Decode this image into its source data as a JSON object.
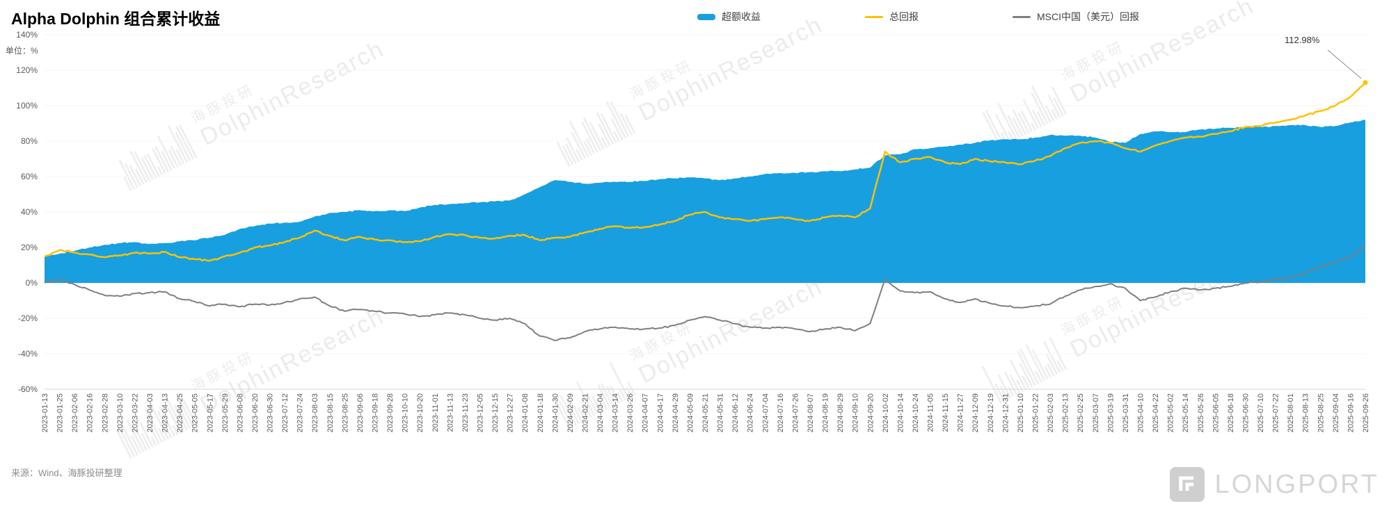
{
  "header": {
    "title": "Alpha Dolphin 组合累计收益",
    "unit_label": "单位：%"
  },
  "legend": [
    {
      "label": "超额收益",
      "color": "#189FE0",
      "type": "area"
    },
    {
      "label": "总回报",
      "color": "#FFC000",
      "type": "line"
    },
    {
      "label": "MSCI中国（美元）回报",
      "color": "#7F7F7F",
      "type": "line"
    }
  ],
  "annotation": {
    "label": "112.98%"
  },
  "footer": {
    "source": "来源：Wind、海豚投研整理"
  },
  "watermark": {
    "cn": "海豚投研",
    "en": "DolphinResearch"
  },
  "logo": {
    "text": "LONGPORT"
  },
  "chart_data": {
    "type": "area",
    "title": "Alpha Dolphin 组合累计收益",
    "xlabel": "",
    "ylabel": "单位：%",
    "ylim": [
      -60,
      140
    ],
    "y_tick_step": 20,
    "y_tick_labels": [
      "140%",
      "120%",
      "100%",
      "80%",
      "60%",
      "40%",
      "20%",
      "0%",
      "-20%",
      "-40%",
      "-60%"
    ],
    "grid": false,
    "legend_position": "top",
    "x": [
      "2023-01-13",
      "2023-01-25",
      "2023-02-06",
      "2023-02-16",
      "2023-02-28",
      "2023-03-10",
      "2023-03-22",
      "2023-04-03",
      "2023-04-13",
      "2023-04-25",
      "2023-05-05",
      "2023-05-17",
      "2023-05-29",
      "2023-06-08",
      "2023-06-20",
      "2023-06-30",
      "2023-07-12",
      "2023-07-24",
      "2023-08-03",
      "2023-08-15",
      "2023-08-25",
      "2023-09-06",
      "2023-09-18",
      "2023-09-28",
      "2023-10-10",
      "2023-10-20",
      "2023-11-01",
      "2023-11-13",
      "2023-11-23",
      "2023-12-05",
      "2023-12-15",
      "2023-12-27",
      "2024-01-08",
      "2024-01-18",
      "2024-01-30",
      "2024-02-09",
      "2024-02-21",
      "2024-03-04",
      "2024-03-14",
      "2024-03-26",
      "2024-04-07",
      "2024-04-17",
      "2024-04-29",
      "2024-05-09",
      "2024-05-21",
      "2024-05-31",
      "2024-06-12",
      "2024-06-24",
      "2024-07-04",
      "2024-07-16",
      "2024-07-26",
      "2024-08-07",
      "2024-08-19",
      "2024-08-29",
      "2024-09-10",
      "2024-09-20",
      "2024-10-02",
      "2024-10-14",
      "2024-10-24",
      "2024-11-05",
      "2024-11-15",
      "2024-11-27",
      "2024-12-09",
      "2024-12-19",
      "2024-12-31",
      "2025-01-10",
      "2025-01-22",
      "2025-02-03",
      "2025-02-13",
      "2025-02-25",
      "2025-03-07",
      "2025-03-19",
      "2025-03-31",
      "2025-04-10",
      "2025-04-22",
      "2025-05-02",
      "2025-05-14",
      "2025-05-26",
      "2025-06-05",
      "2025-06-18",
      "2025-06-30",
      "2025-07-10",
      "2025-07-22",
      "2025-08-01",
      "2025-08-13",
      "2025-08-25",
      "2025-09-04",
      "2025-09-16",
      "2025-09-26"
    ],
    "series": [
      {
        "name": "超额收益",
        "type": "area",
        "color": "#189FE0",
        "values": [
          15,
          16.5,
          18,
          20,
          21.5,
          22.5,
          23,
          22,
          22.5,
          23.5,
          24,
          25.5,
          27,
          30.5,
          32,
          33.5,
          34,
          34.5,
          37.5,
          39.5,
          40,
          41,
          40.5,
          41,
          40.5,
          42.5,
          44,
          44.5,
          45,
          45.5,
          46,
          46.5,
          50,
          54,
          58,
          57,
          56,
          56.5,
          57,
          57,
          57.5,
          58.5,
          59,
          59.5,
          59,
          58,
          59,
          60,
          61.5,
          62,
          62,
          62.5,
          63,
          63,
          64,
          65,
          72,
          72.5,
          75.5,
          76,
          77,
          78,
          79,
          80.5,
          81,
          81,
          82,
          83.5,
          83,
          83,
          82,
          79.5,
          79,
          84,
          85.5,
          85,
          85,
          86.5,
          87,
          87.5,
          88,
          88,
          88.5,
          89,
          89,
          88,
          88.5,
          90.5,
          92
        ]
      },
      {
        "name": "总回报",
        "type": "line",
        "color": "#FFC000",
        "values": [
          15,
          18.5,
          17,
          16,
          14.5,
          15.5,
          17,
          16.5,
          17.5,
          14.5,
          13.5,
          12.5,
          15,
          17,
          20,
          21,
          23,
          25.5,
          29.5,
          26.5,
          24,
          26,
          24.5,
          24,
          23,
          23.5,
          26,
          27.5,
          27,
          25.5,
          25,
          26.5,
          27,
          24,
          25.5,
          26,
          28.5,
          30.5,
          32,
          31,
          31.5,
          33,
          35,
          38.5,
          40,
          37,
          36,
          35,
          36,
          37,
          36,
          35,
          37,
          38,
          37,
          42,
          74,
          68,
          70,
          71,
          68,
          67,
          70,
          68.5,
          68,
          67,
          69,
          71.5,
          76,
          79,
          80,
          79,
          76,
          74,
          77.5,
          80,
          82,
          82.5,
          84,
          85.5,
          88,
          88.5,
          90.5,
          92,
          94.5,
          97,
          100,
          105,
          112.98
        ]
      },
      {
        "name": "MSCI中国（美元）回报",
        "type": "line",
        "color": "#7F7F7F",
        "values": [
          0,
          2,
          -1,
          -4,
          -7,
          -7.5,
          -6,
          -5.5,
          -5,
          -9,
          -10.5,
          -13,
          -12,
          -13.5,
          -12,
          -12.5,
          -11,
          -9,
          -8,
          -13,
          -16,
          -15,
          -16,
          -17,
          -17.5,
          -19,
          -18,
          -17,
          -18,
          -20,
          -21,
          -20,
          -23,
          -30,
          -32.5,
          -31,
          -27.5,
          -26,
          -25,
          -26,
          -26,
          -25.5,
          -24,
          -21,
          -19,
          -21,
          -23,
          -25,
          -25.5,
          -25,
          -26,
          -27.5,
          -26,
          -25,
          -27,
          -23,
          2,
          -4.5,
          -5.5,
          -5,
          -9,
          -11,
          -9,
          -11.5,
          -13,
          -14,
          -13,
          -12,
          -7.5,
          -4,
          -2,
          -0.5,
          -3,
          -10,
          -8,
          -5,
          -3,
          -4,
          -3,
          -2,
          0,
          0.5,
          2,
          3,
          5.5,
          9,
          11.5,
          14.5,
          21
        ]
      }
    ],
    "final_value_annotation": "112.98%"
  }
}
